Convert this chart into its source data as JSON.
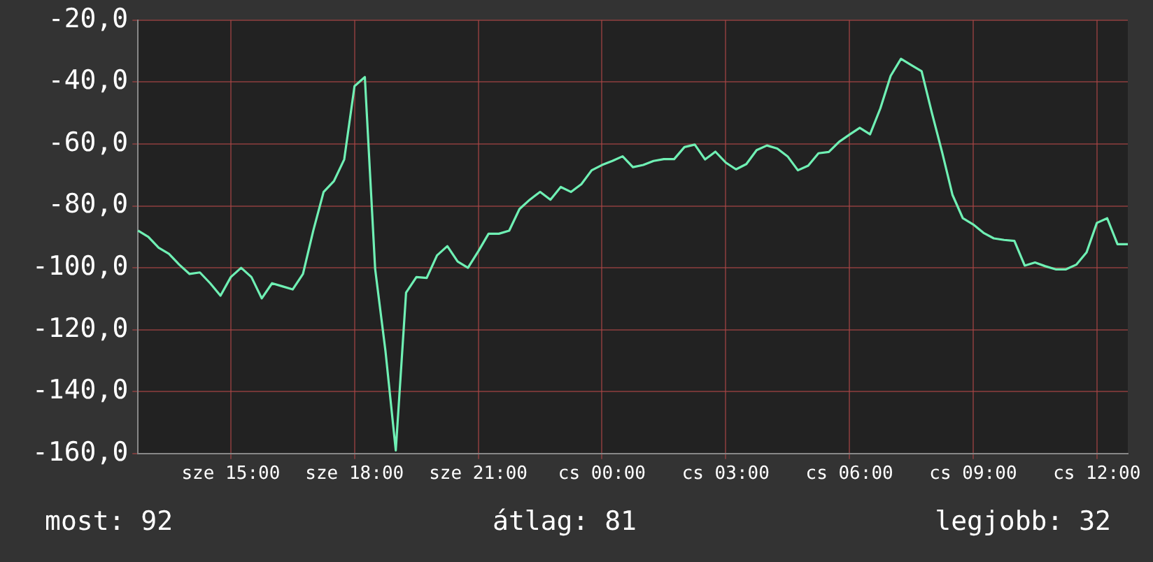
{
  "chart_data": {
    "type": "line",
    "ylim": [
      -160,
      -20
    ],
    "categories": [
      null,
      null,
      null,
      null,
      null,
      null,
      null,
      null,
      null,
      "sze 15:00",
      null,
      null,
      null,
      null,
      null,
      null,
      null,
      null,
      null,
      null,
      null,
      "sze 18:00",
      null,
      null,
      null,
      null,
      null,
      null,
      null,
      null,
      null,
      null,
      null,
      "sze 21:00",
      null,
      null,
      null,
      null,
      null,
      null,
      null,
      null,
      null,
      null,
      null,
      "cs 00:00",
      null,
      null,
      null,
      null,
      null,
      null,
      null,
      null,
      null,
      null,
      null,
      "cs 03:00",
      null,
      null,
      null,
      null,
      null,
      null,
      null,
      null,
      null,
      null,
      null,
      "cs 06:00",
      null,
      null,
      null,
      null,
      null,
      null,
      null,
      null,
      null,
      null,
      null,
      "cs 09:00",
      null,
      null,
      null,
      null,
      null,
      null,
      null,
      null,
      null,
      null,
      null,
      "cs 12:00",
      null,
      null,
      null
    ],
    "yticks": [
      {
        "value": -160,
        "label": "-160,0"
      },
      {
        "value": -140,
        "label": "-140,0"
      },
      {
        "value": -120,
        "label": "-120,0"
      },
      {
        "value": -100,
        "label": "-100,0"
      },
      {
        "value": -80,
        "label": "-80,0"
      },
      {
        "value": -60,
        "label": "-60,0"
      },
      {
        "value": -40,
        "label": "-40,0"
      },
      {
        "value": -20,
        "label": "-20,0"
      }
    ],
    "grid": true,
    "legend": false,
    "marker": "none",
    "line_style": "solid",
    "annotations": [
      "most: 92",
      "átlag: 81",
      "legjobb: 32"
    ],
    "series": [
      {
        "color": "#6ff0b4",
        "values": [
          -88,
          -90,
          -93.5,
          -95.5,
          -99,
          -102,
          -101.5,
          -105,
          -109,
          -103,
          -100,
          -103,
          -109.9,
          -105,
          -106,
          -107,
          -102,
          -88,
          -75.5,
          -72,
          -65,
          -41.3,
          -38.4,
          -100.4,
          -126.9,
          -159,
          -108,
          -103,
          -103.3,
          -96,
          -93,
          -98,
          -100,
          -94.7,
          -89,
          -89,
          -88,
          -81,
          -78,
          -75.5,
          -78,
          -73.9,
          -75.5,
          -73,
          -68.5,
          -66.8,
          -65.5,
          -64,
          -67.5,
          -66.8,
          -65.5,
          -64.9,
          -64.9,
          -61,
          -60.2,
          -65,
          -62.5,
          -66,
          -68.2,
          -66.5,
          -62,
          -60.5,
          -61.5,
          -64,
          -68.5,
          -67,
          -63,
          -62.6,
          -59.3,
          -57,
          -54.8,
          -56.9,
          -48.5,
          -38,
          -32.5,
          -34.5,
          -36.5,
          -50,
          -62.8,
          -76.5,
          -84,
          -86,
          -88.7,
          -90.5,
          -91,
          -91.3,
          -99.3,
          -98.3,
          -99.5,
          -100.5,
          -100.5,
          -99,
          -95,
          -85.5,
          -84,
          -92.4,
          -92.4
        ]
      }
    ]
  }
}
